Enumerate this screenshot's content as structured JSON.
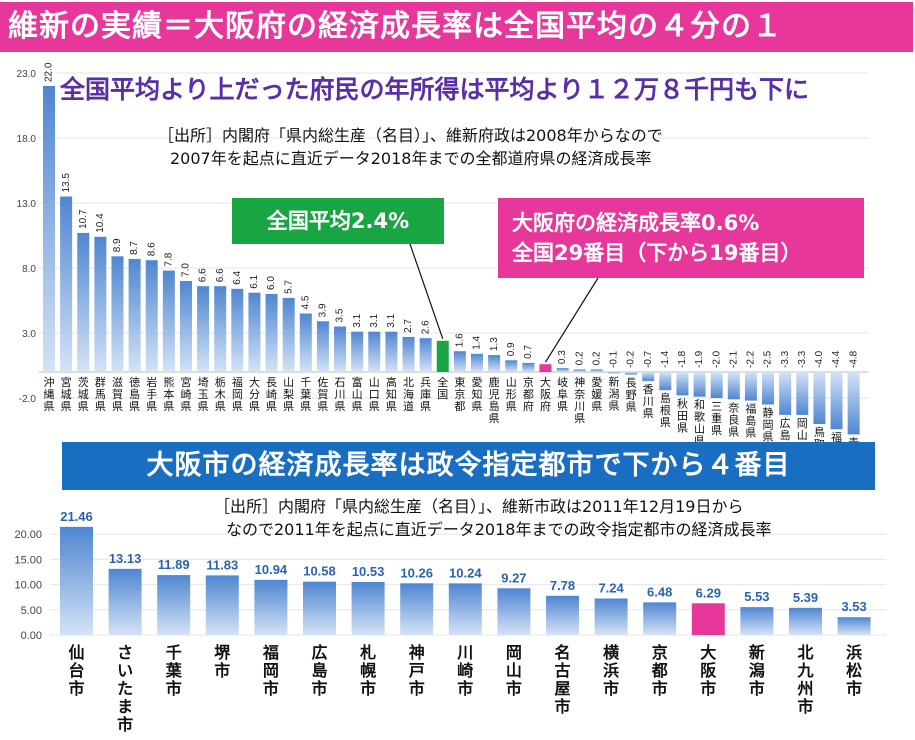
{
  "top_banner": "維新の実績＝大阪府の経済成長率は全国平均の４分の１",
  "sub_heading": "全国平均より上だった府民の年所得は平均より１２万８千円も下に",
  "source1": {
    "line1": "［出所］内閣府「県内総生産（名目）」、維新府政は2008年からなので",
    "line2": "2007年を起点に直近データ2018年までの全都道府県の経済成長率"
  },
  "callout_avg": "全国平均2.4%",
  "callout_osaka": {
    "line1": "大阪府の経済成長率0.6%",
    "line2": "全国29番目（下から19番目）"
  },
  "bottom_banner": "大阪市の経済成長率は政令指定都市で下から４番目",
  "source2": {
    "line1": "［出所］内閣府「県内総生産（名目）」、維新市政は2011年12月19日から",
    "line2": "なので2011年を起点に直近データ2018年までの政令指定都市の経済成長率"
  },
  "colors": {
    "bar": "#4f86d1",
    "highlight_avg": "#1aa543",
    "highlight_osaka": "#e8379a"
  },
  "chart_data": [
    {
      "type": "bar",
      "title": "",
      "ylim": [
        -2.0,
        23.0
      ],
      "yticks": [
        "23.0",
        "18.0",
        "13.0",
        "8.0",
        "3.0",
        "-2.0"
      ],
      "categories": [
        "沖縄県",
        "宮城県",
        "茨城県",
        "群馬県",
        "滋賀県",
        "徳島県",
        "岩手県",
        "熊本県",
        "宮崎県",
        "埼玉県",
        "栃木県",
        "福岡県",
        "大分県",
        "長崎県",
        "山梨県",
        "千葉県",
        "佐賀県",
        "石川県",
        "富山県",
        "山口県",
        "高知県",
        "北海道",
        "兵庫県",
        "全国",
        "東京都",
        "愛知県",
        "鹿児島県",
        "山形県",
        "京都府",
        "大阪府",
        "岐阜県",
        "神奈川県",
        "愛媛県",
        "新潟県",
        "長野県",
        "香川県",
        "島根県",
        "秋田県",
        "和歌山県",
        "三重県",
        "奈良県",
        "福島県",
        "静岡県",
        "広島県",
        "岡山県",
        "鳥取県",
        "福井県",
        "青森県"
      ],
      "values": [
        22.0,
        13.5,
        10.7,
        10.4,
        8.9,
        8.7,
        8.6,
        7.8,
        7.0,
        6.6,
        6.6,
        6.4,
        6.1,
        6.0,
        5.7,
        4.5,
        3.9,
        3.5,
        3.1,
        3.1,
        3.1,
        2.7,
        2.6,
        2.4,
        1.6,
        1.4,
        1.3,
        0.9,
        0.7,
        0.6,
        0.3,
        0.2,
        0.2,
        -0.1,
        -0.2,
        -0.7,
        -1.4,
        -1.8,
        -1.9,
        -2.0,
        -2.1,
        -2.2,
        -2.5,
        -3.3,
        -3.3,
        -4.0,
        -4.4,
        -4.8
      ],
      "data_labels": [
        "22.0",
        "13.5",
        "10.7",
        "10.4",
        "8.9",
        "8.7",
        "8.6",
        "7.8",
        "7.0",
        "6.6",
        "6.6",
        "6.4",
        "6.1",
        "6.0",
        "5.7",
        "4.5",
        "3.9",
        "3.5",
        "3.1",
        "3.1",
        "3.1",
        "2.7",
        "2.6",
        "",
        "1.6",
        "1.4",
        "1.3",
        "0.9",
        "0.7",
        "",
        "0.3",
        "0.2",
        "0.2",
        "-0.1",
        "-0.2",
        "-0.7",
        "-1.4",
        "-1.8",
        "-1.9",
        "-2.0",
        "-2.1",
        "-2.2",
        "-2.5",
        "-3.3",
        "-3.3",
        "-4.0",
        "-4.4",
        "-4.8"
      ],
      "highlight": {
        "全国": "#1aa543",
        "大阪府": "#e8379a"
      }
    },
    {
      "type": "bar",
      "title": "",
      "ylim": [
        0,
        25
      ],
      "yticks": [
        "20.00",
        "15.00",
        "10.00",
        "5.00",
        "0.00"
      ],
      "categories": [
        "仙台市",
        "さいたま市",
        "千葉市",
        "堺市",
        "福岡市",
        "広島市",
        "札幌市",
        "神戸市",
        "川崎市",
        "岡山市",
        "名古屋市",
        "横浜市",
        "京都市",
        "大阪市",
        "新潟市",
        "北九州市",
        "浜松市"
      ],
      "values": [
        21.46,
        13.13,
        11.89,
        11.83,
        10.94,
        10.58,
        10.53,
        10.26,
        10.24,
        9.27,
        7.78,
        7.24,
        6.48,
        6.29,
        5.53,
        5.39,
        3.53
      ],
      "data_labels": [
        "21.46",
        "13.13",
        "11.89",
        "11.83",
        "10.94",
        "10.58",
        "10.53",
        "10.26",
        "10.24",
        "9.27",
        "7.78",
        "7.24",
        "6.48",
        "6.29",
        "5.53",
        "5.39",
        "3.53"
      ],
      "highlight": {
        "大阪市": "#e8379a"
      }
    }
  ]
}
